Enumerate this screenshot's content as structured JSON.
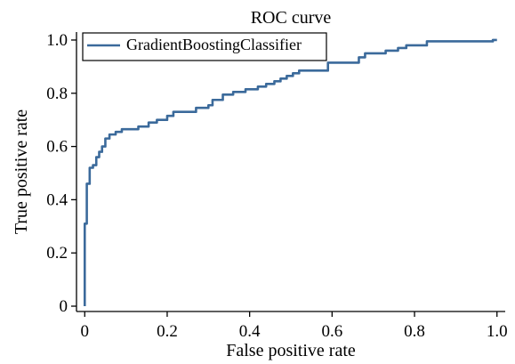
{
  "chart_data": {
    "type": "line",
    "title": "ROC curve",
    "xlabel": "False positive rate",
    "ylabel": "True positive rate",
    "xlim": [
      -0.02,
      1.02
    ],
    "ylim": [
      -0.02,
      1.03
    ],
    "x_ticks": [
      0,
      0.2,
      0.4,
      0.6,
      0.8,
      1.0
    ],
    "x_tick_labels": [
      "0",
      "0.2",
      "0.4",
      "0.6",
      "0.8",
      "1.0"
    ],
    "y_ticks": [
      0,
      0.2,
      0.4,
      0.6,
      0.8,
      1.0
    ],
    "y_tick_labels": [
      "0",
      "0.2",
      "0.4",
      "0.6",
      "0.8",
      "1.0"
    ],
    "grid": false,
    "legend": {
      "placement": "top-left",
      "entries": [
        "GradientBoostingClassifier"
      ]
    },
    "series": [
      {
        "name": "GradientBoostingClassifier",
        "color": "#3b6a9b",
        "x": [
          0,
          0,
          0.005,
          0.005,
          0.012,
          0.012,
          0.02,
          0.02,
          0.028,
          0.028,
          0.035,
          0.035,
          0.042,
          0.042,
          0.05,
          0.05,
          0.06,
          0.06,
          0.075,
          0.075,
          0.09,
          0.09,
          0.13,
          0.13,
          0.155,
          0.155,
          0.175,
          0.175,
          0.2,
          0.2,
          0.215,
          0.215,
          0.27,
          0.27,
          0.3,
          0.3,
          0.31,
          0.31,
          0.335,
          0.335,
          0.36,
          0.36,
          0.39,
          0.39,
          0.42,
          0.42,
          0.44,
          0.44,
          0.46,
          0.46,
          0.475,
          0.475,
          0.49,
          0.49,
          0.505,
          0.505,
          0.52,
          0.52,
          0.59,
          0.59,
          0.665,
          0.665,
          0.68,
          0.68,
          0.73,
          0.73,
          0.76,
          0.76,
          0.78,
          0.78,
          0.83,
          0.83,
          0.99,
          0.99,
          1.0
        ],
        "y": [
          0,
          0.31,
          0.31,
          0.46,
          0.46,
          0.52,
          0.52,
          0.53,
          0.53,
          0.56,
          0.56,
          0.58,
          0.58,
          0.6,
          0.6,
          0.63,
          0.63,
          0.645,
          0.645,
          0.655,
          0.655,
          0.665,
          0.665,
          0.675,
          0.675,
          0.69,
          0.69,
          0.7,
          0.7,
          0.715,
          0.715,
          0.73,
          0.73,
          0.745,
          0.745,
          0.755,
          0.755,
          0.775,
          0.775,
          0.795,
          0.795,
          0.805,
          0.805,
          0.815,
          0.815,
          0.825,
          0.825,
          0.835,
          0.835,
          0.845,
          0.845,
          0.855,
          0.855,
          0.865,
          0.865,
          0.875,
          0.875,
          0.885,
          0.885,
          0.915,
          0.915,
          0.935,
          0.935,
          0.95,
          0.95,
          0.96,
          0.96,
          0.97,
          0.97,
          0.98,
          0.98,
          0.995,
          0.995,
          1.0,
          1.0
        ]
      }
    ]
  }
}
